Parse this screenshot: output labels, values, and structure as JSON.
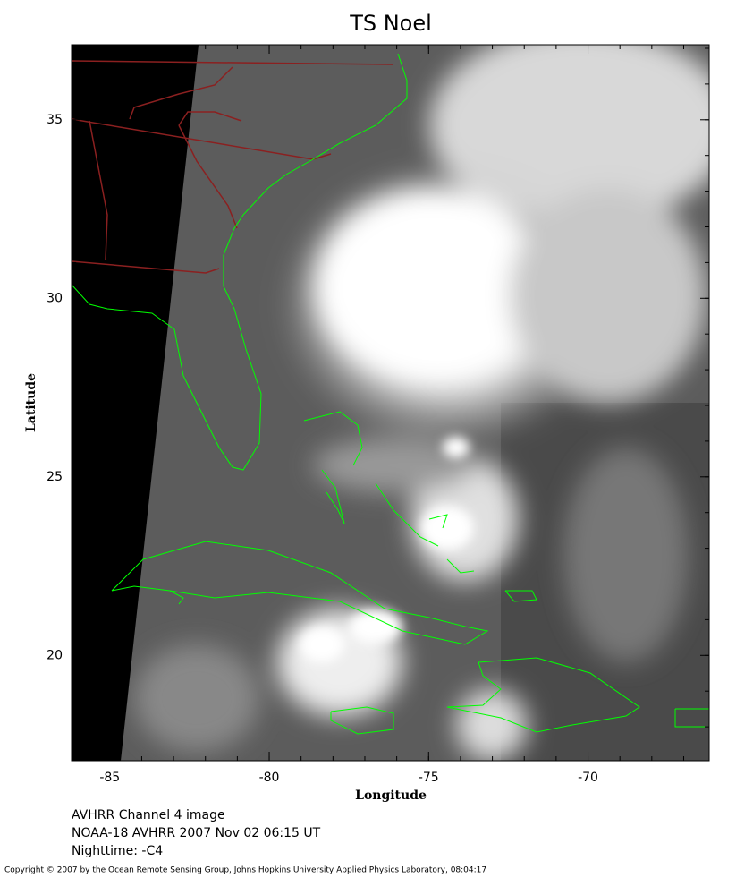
{
  "map": {
    "title": "TS Noel",
    "xlabel": "Longitude",
    "ylabel": "Latitude",
    "xlim": [
      -86.2,
      -66.2
    ],
    "ylim": [
      17.05,
      37.1
    ],
    "xticks": [
      -85,
      -80,
      -75,
      -70
    ],
    "yticks": [
      20,
      25,
      30,
      35
    ]
  },
  "caption": [
    "AVHRR Channel 4 image",
    "NOAA-18 AVHRR 2007 Nov 02 06:15 UT",
    "Nighttime: -C4"
  ],
  "copyright": "Copyright © 2007 by the Ocean Remote Sensing Group, Johns Hopkins University Applied Physics Laboratory, 08:04:17"
}
